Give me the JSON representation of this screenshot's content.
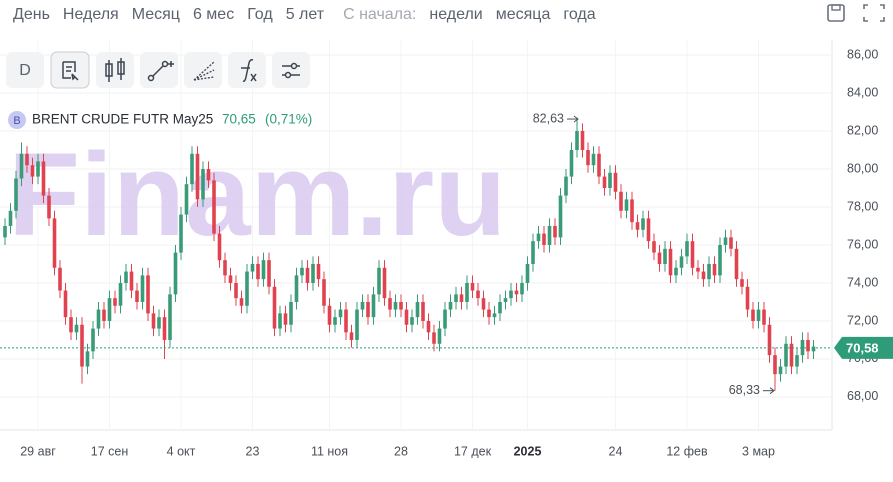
{
  "toolbar": {
    "periods": [
      "День",
      "Неделя",
      "Месяц",
      "6 мес",
      "Год",
      "5 лет"
    ],
    "since_label": "С начала:",
    "since": [
      "недели",
      "месяца",
      "года"
    ]
  },
  "tools": {
    "first": "D"
  },
  "instrument": {
    "badge": "B",
    "name": "BRENT CRUDE FUTR May25",
    "last": "70,65",
    "change": "(0,71%)"
  },
  "watermark": "Finam.ru",
  "chart_data": {
    "type": "candlestick",
    "up_color": "#3a9b78",
    "down_color": "#e0434f",
    "grid": true,
    "ylim": [
      66.26,
      86.79
    ],
    "yticks": [
      {
        "value": 68,
        "label": "68,00"
      },
      {
        "value": 70,
        "label": "70,00"
      },
      {
        "value": 72,
        "label": "72,00"
      },
      {
        "value": 74,
        "label": "74,00"
      },
      {
        "value": 76,
        "label": "76,00"
      },
      {
        "value": 78,
        "label": "78,00"
      },
      {
        "value": 80,
        "label": "80,00"
      },
      {
        "value": 82,
        "label": "82,00"
      },
      {
        "value": 84,
        "label": "84,00"
      },
      {
        "value": 86,
        "label": "86,00"
      }
    ],
    "price_line": {
      "value": 70.58,
      "label": "70,58",
      "color": "#2e9c78"
    },
    "max_label": {
      "value": 82.63,
      "label": "82,63"
    },
    "min_label": {
      "value": 68.33,
      "label": "68,33"
    },
    "categories": [
      null,
      null,
      null,
      null,
      null,
      null,
      "29 авг",
      null,
      null,
      null,
      null,
      null,
      null,
      null,
      null,
      null,
      null,
      null,
      null,
      "17 сен",
      null,
      null,
      null,
      null,
      null,
      null,
      null,
      null,
      null,
      null,
      null,
      null,
      "4 окт",
      null,
      null,
      null,
      null,
      null,
      null,
      null,
      null,
      null,
      null,
      null,
      null,
      "23",
      null,
      null,
      null,
      null,
      null,
      null,
      null,
      null,
      null,
      null,
      null,
      null,
      null,
      "11 ноя",
      null,
      null,
      null,
      null,
      null,
      null,
      null,
      null,
      null,
      null,
      null,
      null,
      "28",
      null,
      null,
      null,
      null,
      null,
      null,
      null,
      null,
      null,
      null,
      null,
      null,
      "17 дек",
      null,
      null,
      null,
      null,
      null,
      null,
      null,
      null,
      null,
      "2025",
      null,
      null,
      null,
      null,
      null,
      null,
      null,
      null,
      null,
      null,
      null,
      null,
      null,
      null,
      null,
      "24",
      null,
      null,
      null,
      null,
      null,
      null,
      null,
      null,
      null,
      null,
      null,
      null,
      "12 фев",
      null,
      null,
      null,
      null,
      null,
      null,
      null,
      null,
      null,
      null,
      null,
      null,
      "3 мар",
      null,
      null,
      null,
      null,
      null,
      null,
      null,
      null,
      null,
      null
    ],
    "open": [
      76.4,
      77.0,
      77.8,
      79.5,
      80.8,
      80.2,
      79.6,
      80.4,
      78.6,
      77.4,
      74.8,
      73.6,
      72.2,
      71.4,
      71.8,
      69.6,
      70.4,
      71.6,
      72.6,
      72.0,
      73.2,
      72.8,
      74.0,
      74.6,
      73.6,
      73.0,
      74.4,
      72.4,
      71.6,
      72.2,
      71.0,
      73.4,
      75.6,
      77.6,
      79.2,
      80.8,
      78.4,
      80.0,
      79.4,
      76.6,
      75.2,
      74.4,
      74.0,
      73.2,
      72.8,
      74.6,
      75.0,
      74.2,
      75.2,
      73.8,
      71.6,
      72.4,
      71.8,
      73.0,
      74.4,
      74.8,
      74.0,
      75.0,
      74.2,
      72.8,
      71.8,
      72.2,
      72.6,
      71.4,
      71.0,
      72.6,
      73.0,
      72.2,
      73.4,
      74.8,
      73.2,
      72.6,
      73.0,
      72.6,
      71.8,
      72.2,
      73.0,
      72.0,
      71.4,
      70.8,
      71.6,
      72.6,
      73.0,
      73.4,
      73.0,
      74.0,
      73.6,
      73.2,
      72.6,
      72.2,
      72.4,
      73.0,
      73.2,
      73.6,
      73.4,
      74.0,
      75.0,
      76.2,
      76.6,
      76.0,
      77.0,
      76.4,
      78.6,
      79.6,
      81.0,
      82.0,
      81.0,
      80.2,
      80.8,
      79.6,
      79.0,
      79.8,
      78.8,
      77.8,
      78.4,
      77.2,
      76.8,
      77.4,
      76.2,
      75.6,
      75.0,
      75.8,
      74.4,
      74.8,
      75.4,
      76.2,
      74.8,
      74.6,
      74.2,
      75.0,
      74.4,
      76.0,
      76.4,
      75.8,
      74.2,
      73.8,
      72.6,
      72.0,
      72.6,
      71.8,
      70.2,
      69.2,
      69.6,
      70.8,
      69.6,
      70.2,
      71.0,
      70.4
    ],
    "high": [
      77.4,
      78.2,
      79.9,
      81.4,
      81.2,
      80.6,
      80.8,
      80.8,
      79.0,
      77.8,
      75.2,
      74.0,
      72.6,
      72.2,
      72.2,
      70.8,
      72.0,
      73.0,
      73.0,
      73.6,
      73.6,
      74.4,
      75.0,
      75.0,
      74.0,
      74.8,
      74.8,
      72.8,
      72.6,
      72.6,
      73.8,
      76.0,
      78.0,
      79.6,
      81.2,
      81.2,
      80.4,
      80.4,
      79.8,
      77.0,
      75.6,
      74.8,
      74.4,
      73.6,
      75.0,
      75.4,
      75.4,
      75.6,
      75.6,
      74.2,
      72.8,
      72.8,
      73.4,
      74.8,
      75.2,
      75.2,
      75.4,
      75.4,
      74.6,
      73.2,
      72.6,
      73.0,
      73.0,
      71.8,
      73.0,
      73.4,
      73.4,
      73.8,
      75.2,
      75.2,
      73.6,
      73.4,
      73.4,
      73.0,
      72.6,
      73.4,
      73.4,
      72.4,
      71.8,
      72.0,
      73.0,
      73.4,
      73.8,
      73.8,
      74.4,
      74.4,
      74.0,
      73.6,
      73.0,
      72.8,
      73.4,
      73.6,
      74.0,
      74.0,
      74.4,
      75.4,
      76.6,
      77.0,
      77.0,
      77.4,
      77.4,
      79.0,
      80.0,
      81.4,
      82.63,
      82.4,
      81.4,
      81.2,
      81.2,
      80.0,
      80.2,
      80.2,
      79.2,
      78.8,
      78.8,
      77.6,
      77.8,
      77.8,
      76.6,
      76.0,
      76.2,
      76.2,
      75.2,
      75.8,
      76.6,
      76.6,
      75.2,
      75.0,
      75.4,
      75.4,
      76.4,
      76.8,
      76.8,
      76.2,
      74.6,
      74.2,
      73.0,
      73.0,
      73.0,
      72.2,
      70.6,
      70.0,
      71.2,
      71.2,
      70.6,
      71.4,
      71.4,
      71.0
    ],
    "low": [
      76.0,
      76.6,
      77.4,
      79.1,
      79.8,
      79.2,
      79.2,
      78.2,
      77.0,
      74.4,
      73.2,
      71.8,
      71.0,
      71.0,
      68.7,
      69.2,
      70.0,
      71.2,
      71.6,
      71.6,
      72.4,
      72.4,
      73.6,
      73.2,
      72.6,
      72.6,
      72.0,
      71.2,
      71.2,
      70.0,
      70.6,
      73.0,
      75.2,
      77.2,
      78.8,
      78.0,
      78.0,
      79.0,
      76.2,
      74.8,
      74.0,
      73.6,
      72.8,
      72.4,
      72.4,
      74.2,
      73.8,
      73.8,
      73.4,
      71.2,
      71.2,
      71.4,
      71.4,
      72.6,
      74.0,
      73.6,
      73.6,
      73.8,
      72.4,
      71.4,
      71.4,
      71.8,
      71.0,
      70.6,
      70.6,
      72.2,
      71.8,
      71.8,
      73.0,
      72.8,
      72.2,
      72.2,
      72.2,
      71.4,
      71.4,
      71.8,
      71.6,
      71.0,
      70.4,
      70.4,
      71.2,
      72.2,
      72.6,
      72.6,
      72.6,
      73.2,
      72.8,
      72.2,
      71.8,
      71.8,
      72.0,
      72.6,
      72.8,
      73.0,
      73.0,
      73.6,
      74.6,
      75.8,
      75.6,
      75.6,
      76.0,
      76.0,
      78.2,
      79.2,
      80.6,
      80.6,
      79.8,
      79.8,
      79.2,
      78.6,
      78.6,
      78.4,
      77.4,
      77.4,
      76.8,
      76.4,
      76.4,
      75.8,
      75.2,
      74.6,
      74.6,
      74.0,
      74.0,
      74.4,
      75.0,
      74.4,
      74.2,
      73.8,
      73.8,
      74.0,
      74.0,
      75.6,
      75.4,
      73.8,
      73.4,
      72.2,
      71.6,
      71.6,
      71.4,
      69.8,
      68.33,
      68.8,
      69.2,
      69.2,
      69.2,
      69.8,
      70.0,
      70.0
    ],
    "close": [
      77.0,
      77.8,
      79.5,
      80.8,
      80.2,
      79.6,
      80.4,
      78.6,
      77.4,
      74.8,
      73.6,
      72.2,
      71.4,
      71.8,
      69.6,
      70.4,
      71.6,
      72.6,
      72.0,
      73.2,
      72.8,
      74.0,
      74.6,
      73.6,
      73.0,
      74.4,
      72.4,
      71.6,
      72.2,
      71.0,
      73.4,
      75.6,
      77.6,
      79.2,
      80.8,
      78.4,
      80.0,
      79.4,
      76.6,
      75.2,
      74.4,
      74.0,
      73.2,
      72.8,
      74.6,
      75.0,
      74.2,
      75.2,
      73.8,
      71.6,
      72.4,
      71.8,
      73.0,
      74.4,
      74.8,
      74.0,
      75.0,
      74.2,
      72.8,
      71.8,
      72.2,
      72.6,
      71.4,
      71.0,
      72.6,
      73.0,
      72.2,
      73.4,
      74.8,
      73.2,
      72.6,
      73.0,
      72.6,
      71.8,
      72.2,
      73.0,
      72.0,
      71.4,
      70.8,
      71.6,
      72.6,
      73.0,
      73.4,
      73.0,
      74.0,
      73.6,
      73.2,
      72.6,
      72.2,
      72.4,
      73.0,
      73.2,
      73.6,
      73.4,
      74.0,
      75.0,
      76.2,
      76.6,
      76.0,
      77.0,
      76.4,
      78.6,
      79.6,
      81.0,
      82.0,
      81.0,
      80.2,
      80.8,
      79.6,
      79.0,
      79.8,
      78.8,
      77.8,
      78.4,
      77.2,
      76.8,
      77.4,
      76.2,
      75.6,
      75.0,
      75.8,
      74.4,
      74.8,
      75.4,
      76.2,
      74.8,
      74.6,
      74.2,
      75.0,
      74.4,
      76.0,
      76.4,
      75.8,
      74.2,
      73.8,
      72.6,
      72.0,
      72.6,
      71.8,
      70.2,
      69.2,
      69.6,
      70.8,
      69.6,
      70.2,
      71.0,
      70.4,
      70.65
    ]
  }
}
